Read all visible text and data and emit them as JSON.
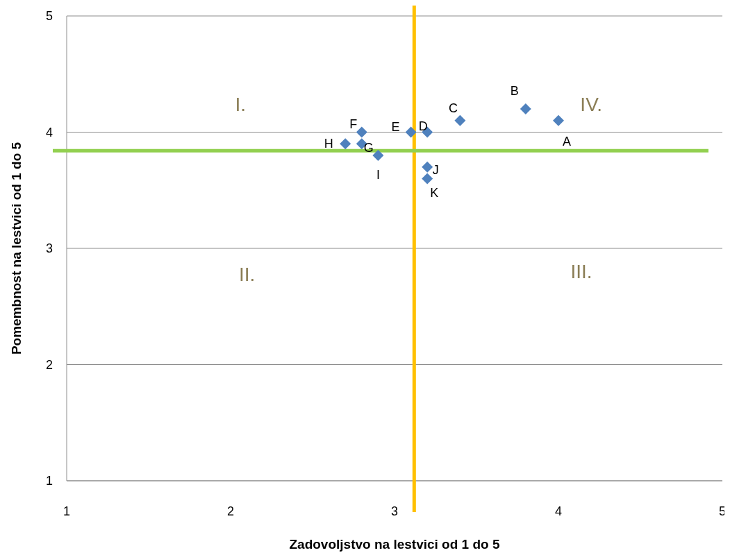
{
  "chart_data": {
    "type": "scatter",
    "xlabel": "Zadovoljstvo na lestvici od 1 do 5",
    "ylabel": "Pomembnost na lestvici od 1 do 5",
    "xlim": [
      1,
      5
    ],
    "xticks": [
      1,
      2,
      3,
      4,
      5
    ],
    "ylim": [
      1,
      5
    ],
    "yticks": [
      1,
      2,
      3,
      4,
      5
    ],
    "grid": "y",
    "marker": "diamond",
    "series": [
      {
        "color": "#4f81bd",
        "x": [
          4.0,
          3.8,
          3.4,
          3.2,
          3.1,
          2.8,
          2.8,
          2.7,
          2.9,
          3.2,
          3.2
        ],
        "values": [
          4.1,
          4.2,
          4.1,
          4.0,
          4.0,
          4.0,
          3.9,
          3.9,
          3.8,
          3.7,
          3.6
        ],
        "value_labels": [
          "A",
          "B",
          "C",
          "D",
          "E",
          "F",
          "G",
          "H",
          "I",
          "J",
          "K"
        ]
      }
    ],
    "ref_lines": [
      {
        "axis": "x",
        "value": 3.12,
        "color": "#ffc000"
      },
      {
        "axis": "y",
        "value": 3.84,
        "color": "#92d050"
      }
    ],
    "annotations": [
      "I.",
      "II.",
      "III.",
      "IV."
    ]
  }
}
